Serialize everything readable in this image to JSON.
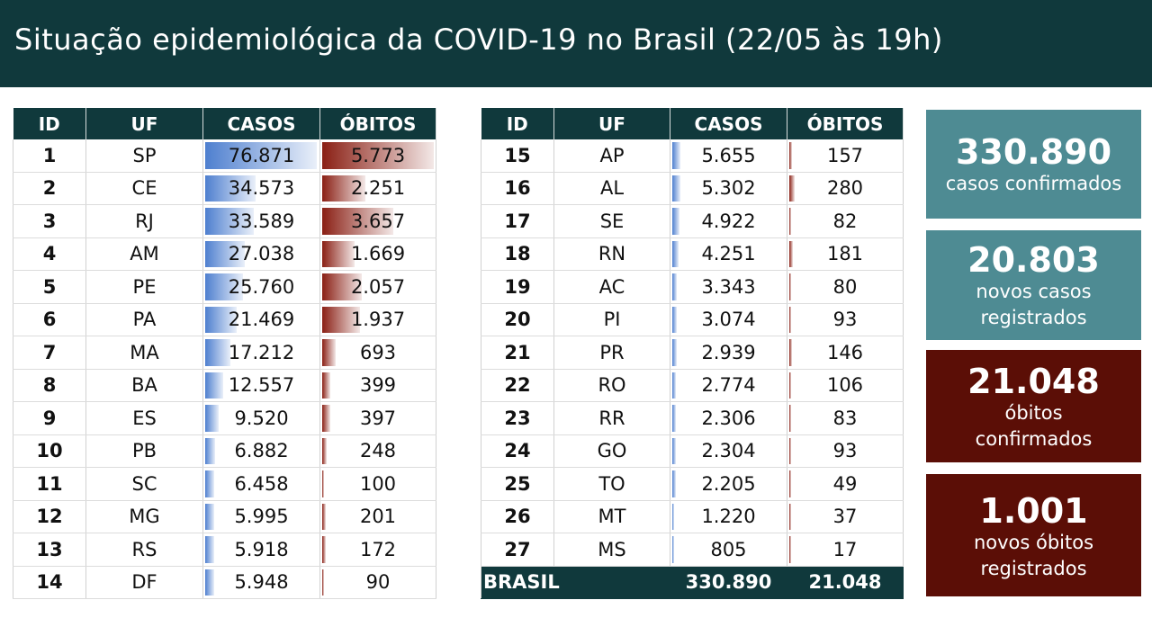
{
  "header": {
    "title": "Situação epidemiológica da COVID-19 no Brasil (22/05 às 19h)"
  },
  "columns": {
    "id": "ID",
    "uf": "UF",
    "casos": "CASOS",
    "obitos": "ÓBITOS"
  },
  "max_casos": 76871,
  "max_obitos": 5773,
  "colors": {
    "header_bg": "#10393c",
    "cases_bar": "#4e7fcf",
    "deaths_bar": "#8a1f14",
    "teal_card": "#4e8b93",
    "maroon_card": "#5b0e06"
  },
  "table_left": [
    {
      "id": "1",
      "uf": "SP",
      "casos": "76.871",
      "obitos": "5.773",
      "casos_n": 76871,
      "obitos_n": 5773
    },
    {
      "id": "2",
      "uf": "CE",
      "casos": "34.573",
      "obitos": "2.251",
      "casos_n": 34573,
      "obitos_n": 2251
    },
    {
      "id": "3",
      "uf": "RJ",
      "casos": "33.589",
      "obitos": "3.657",
      "casos_n": 33589,
      "obitos_n": 3657
    },
    {
      "id": "4",
      "uf": "AM",
      "casos": "27.038",
      "obitos": "1.669",
      "casos_n": 27038,
      "obitos_n": 1669
    },
    {
      "id": "5",
      "uf": "PE",
      "casos": "25.760",
      "obitos": "2.057",
      "casos_n": 25760,
      "obitos_n": 2057
    },
    {
      "id": "6",
      "uf": "PA",
      "casos": "21.469",
      "obitos": "1.937",
      "casos_n": 21469,
      "obitos_n": 1937
    },
    {
      "id": "7",
      "uf": "MA",
      "casos": "17.212",
      "obitos": "693",
      "casos_n": 17212,
      "obitos_n": 693
    },
    {
      "id": "8",
      "uf": "BA",
      "casos": "12.557",
      "obitos": "399",
      "casos_n": 12557,
      "obitos_n": 399
    },
    {
      "id": "9",
      "uf": "ES",
      "casos": "9.520",
      "obitos": "397",
      "casos_n": 9520,
      "obitos_n": 397
    },
    {
      "id": "10",
      "uf": "PB",
      "casos": "6.882",
      "obitos": "248",
      "casos_n": 6882,
      "obitos_n": 248
    },
    {
      "id": "11",
      "uf": "SC",
      "casos": "6.458",
      "obitos": "100",
      "casos_n": 6458,
      "obitos_n": 100
    },
    {
      "id": "12",
      "uf": "MG",
      "casos": "5.995",
      "obitos": "201",
      "casos_n": 5995,
      "obitos_n": 201
    },
    {
      "id": "13",
      "uf": "RS",
      "casos": "5.918",
      "obitos": "172",
      "casos_n": 5918,
      "obitos_n": 172
    },
    {
      "id": "14",
      "uf": "DF",
      "casos": "5.948",
      "obitos": "90",
      "casos_n": 5948,
      "obitos_n": 90
    }
  ],
  "table_right": [
    {
      "id": "15",
      "uf": "AP",
      "casos": "5.655",
      "obitos": "157",
      "casos_n": 5655,
      "obitos_n": 157
    },
    {
      "id": "16",
      "uf": "AL",
      "casos": "5.302",
      "obitos": "280",
      "casos_n": 5302,
      "obitos_n": 280
    },
    {
      "id": "17",
      "uf": "SE",
      "casos": "4.922",
      "obitos": "82",
      "casos_n": 4922,
      "obitos_n": 82
    },
    {
      "id": "18",
      "uf": "RN",
      "casos": "4.251",
      "obitos": "181",
      "casos_n": 4251,
      "obitos_n": 181
    },
    {
      "id": "19",
      "uf": "AC",
      "casos": "3.343",
      "obitos": "80",
      "casos_n": 3343,
      "obitos_n": 80
    },
    {
      "id": "20",
      "uf": "PI",
      "casos": "3.074",
      "obitos": "93",
      "casos_n": 3074,
      "obitos_n": 93
    },
    {
      "id": "21",
      "uf": "PR",
      "casos": "2.939",
      "obitos": "146",
      "casos_n": 2939,
      "obitos_n": 146
    },
    {
      "id": "22",
      "uf": "RO",
      "casos": "2.774",
      "obitos": "106",
      "casos_n": 2774,
      "obitos_n": 106
    },
    {
      "id": "23",
      "uf": "RR",
      "casos": "2.306",
      "obitos": "83",
      "casos_n": 2306,
      "obitos_n": 83
    },
    {
      "id": "24",
      "uf": "GO",
      "casos": "2.304",
      "obitos": "93",
      "casos_n": 2304,
      "obitos_n": 93
    },
    {
      "id": "25",
      "uf": "TO",
      "casos": "2.205",
      "obitos": "49",
      "casos_n": 2205,
      "obitos_n": 49
    },
    {
      "id": "26",
      "uf": "MT",
      "casos": "1.220",
      "obitos": "37",
      "casos_n": 1220,
      "obitos_n": 37
    },
    {
      "id": "27",
      "uf": "MS",
      "casos": "805",
      "obitos": "17",
      "casos_n": 805,
      "obitos_n": 17
    }
  ],
  "total": {
    "label": "BRASIL",
    "casos": "330.890",
    "obitos": "21.048"
  },
  "cards": {
    "cases": {
      "value": "330.890",
      "label": "casos confirmados"
    },
    "new_cases": {
      "value": "20.803",
      "label1": "novos casos",
      "label2": "registrados"
    },
    "deaths": {
      "value": "21.048",
      "label1": "óbitos",
      "label2": "confirmados"
    },
    "new_deaths": {
      "value": "1.001",
      "label1": "novos óbitos",
      "label2": "registrados"
    }
  }
}
